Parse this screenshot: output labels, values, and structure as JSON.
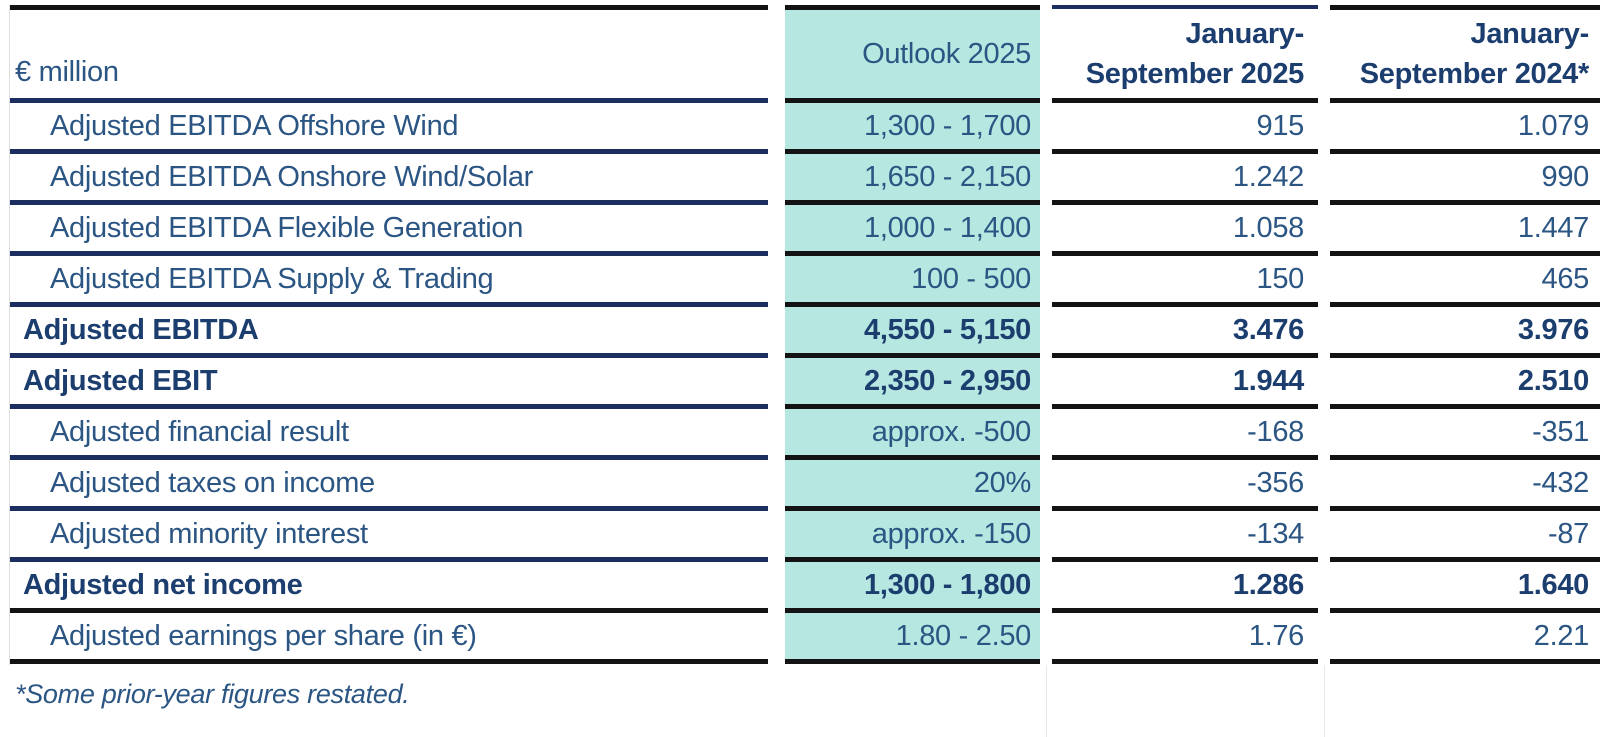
{
  "table": {
    "unit_label": "€ million",
    "header": {
      "outlook": "Outlook 2025",
      "period_2025_line1": "January-",
      "period_2025_line2": "September 2025",
      "period_2024_line1": "January-",
      "period_2024_line2": "September 2024*"
    },
    "rows": [
      {
        "label": "Adjusted EBITDA Offshore Wind",
        "outlook": "1,300 - 1,700",
        "sep2025": "915",
        "sep2024": "1.079"
      },
      {
        "label": "Adjusted EBITDA Onshore Wind/Solar",
        "outlook": "1,650 - 2,150",
        "sep2025": "1.242",
        "sep2024": "990"
      },
      {
        "label": "Adjusted EBITDA Flexible Generation",
        "outlook": "1,000 - 1,400",
        "sep2025": "1.058",
        "sep2024": "1.447"
      },
      {
        "label": "Adjusted EBITDA Supply & Trading",
        "outlook": "100 - 500",
        "sep2025": "150",
        "sep2024": "465"
      },
      {
        "label": "Adjusted EBITDA",
        "outlook": "4,550 - 5,150",
        "sep2025": "3.476",
        "sep2024": "3.976"
      },
      {
        "label": "Adjusted EBIT",
        "outlook": "2,350 - 2,950",
        "sep2025": "1.944",
        "sep2024": "2.510"
      },
      {
        "label": "Adjusted financial result",
        "outlook": "approx. -500",
        "sep2025": "-168",
        "sep2024": "-351"
      },
      {
        "label": "Adjusted taxes on income",
        "outlook": "20%",
        "sep2025": "-356",
        "sep2024": "-432"
      },
      {
        "label": "Adjusted minority interest",
        "outlook": "approx. -150",
        "sep2025": "-134",
        "sep2024": "-87"
      },
      {
        "label": "Adjusted net income",
        "outlook": "1,300 - 1,800",
        "sep2025": "1.286",
        "sep2024": "1.640"
      },
      {
        "label": "Adjusted earnings per share (in €)",
        "outlook": "1.80 - 2.50",
        "sep2025": "1.76",
        "sep2024": "2.21"
      }
    ],
    "footnote": "*Some prior-year figures restated."
  },
  "colors": {
    "highlight_column_bg": "#b6e8e1",
    "navy_border": "#1b2e5f",
    "black_border": "#131313",
    "text_regular": "#2b5583",
    "text_bold": "#1c3e6f"
  }
}
